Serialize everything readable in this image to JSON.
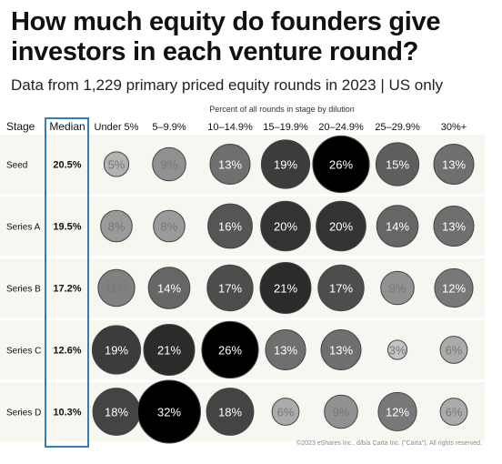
{
  "header": {
    "title": "How much equity do founders give investors in each venture round?",
    "subtitle": "Data from 1,229 primary priced equity rounds in 2023 | US only"
  },
  "footer": {
    "credit": "©2023 eShares Inc., d/b/a Carta Inc. (\"Carta\"). All rights reserved."
  },
  "chart_data": {
    "type": "table",
    "title": "How much equity do founders give investors in each venture round?",
    "subtitle": "Data from 1,229 primary priced equity rounds in 2023 | US only",
    "column_group_label": "Percent of all rounds in stage by dilution",
    "stage_header": "Stage",
    "median_header": "Median",
    "categories": [
      "Under 5%",
      "5–9.9%",
      "10–14.9%",
      "15–19.9%",
      "20–24.9%",
      "25–29.9%",
      "30%+"
    ],
    "rows": [
      {
        "stage": "Seed",
        "median": "20.5%",
        "values": [
          5,
          9,
          13,
          19,
          26,
          15,
          13
        ]
      },
      {
        "stage": "Series A",
        "median": "19.5%",
        "values": [
          8,
          8,
          16,
          20,
          20,
          14,
          13
        ]
      },
      {
        "stage": "Series B",
        "median": "17.2%",
        "values": [
          11,
          14,
          17,
          21,
          17,
          9,
          12
        ]
      },
      {
        "stage": "Series C",
        "median": "12.6%",
        "values": [
          19,
          21,
          26,
          13,
          13,
          3,
          6
        ]
      },
      {
        "stage": "Series D",
        "median": "10.3%",
        "values": [
          18,
          32,
          18,
          6,
          9,
          12,
          6
        ]
      }
    ],
    "value_suffix": "%",
    "median_highlight_color": "#2f7fc1"
  }
}
